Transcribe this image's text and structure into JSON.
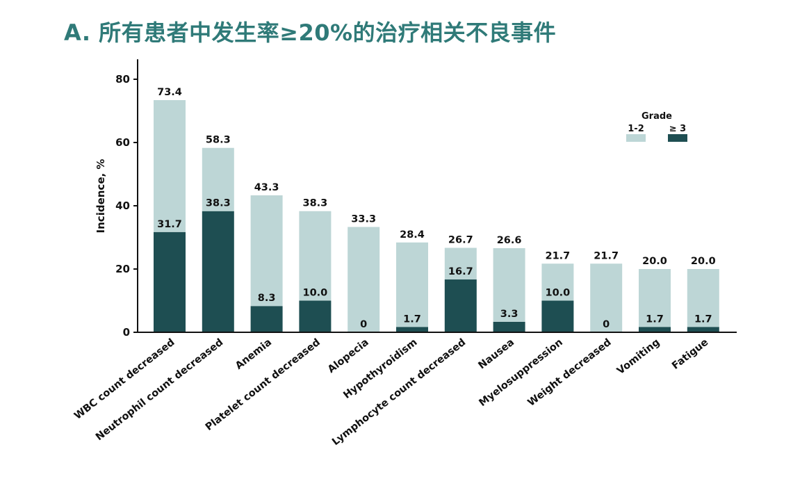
{
  "page": {
    "title": "A. 所有患者中发生率≥20%的治疗相关不良事件"
  },
  "colors": {
    "title": "#2f7a78",
    "grade_low": "#bdd6d6",
    "grade_high": "#1e4e52",
    "axis": "#111111"
  },
  "chart_data": {
    "type": "bar",
    "stacked": true,
    "categories": [
      "WBC count decreased",
      "Neutrophil count decreased",
      "Anemia",
      "Platelet count decreased",
      "Alopecia",
      "Hypothyroidism",
      "Lymphocyte count decreased",
      "Nausea",
      "Myelosuppression",
      "Weight decreased",
      "Vomiting",
      "Fatigue"
    ],
    "total_labels": [
      "73.4",
      "58.3",
      "43.3",
      "38.3",
      "33.3",
      "28.4",
      "26.7",
      "26.6",
      "21.7",
      "21.7",
      "20.0",
      "20.0"
    ],
    "high_labels": [
      "31.7",
      "38.3",
      "8.3",
      "10.0",
      "0",
      "1.7",
      "16.7",
      "3.3",
      "10.0",
      "0",
      "1.7",
      "1.7"
    ],
    "series": [
      {
        "name": "1-2",
        "values": [
          41.7,
          20.0,
          35.0,
          28.3,
          33.3,
          26.7,
          10.0,
          23.3,
          11.7,
          21.7,
          18.3,
          18.3
        ]
      },
      {
        "name": "≥ 3",
        "values": [
          31.7,
          38.3,
          8.3,
          10.0,
          0,
          1.7,
          16.7,
          3.3,
          10.0,
          0,
          1.7,
          1.7
        ]
      }
    ],
    "totals": [
      73.4,
      58.3,
      43.3,
      38.3,
      33.3,
      28.4,
      26.7,
      26.6,
      21.7,
      21.7,
      20.0,
      20.0
    ],
    "ylabel": "Incidence, %",
    "xlabel": "",
    "ylim": [
      0,
      85
    ],
    "yticks": [
      0,
      20,
      40,
      60,
      80
    ],
    "legend": {
      "title": "Grade",
      "placement": "top-right"
    },
    "grid": false
  }
}
